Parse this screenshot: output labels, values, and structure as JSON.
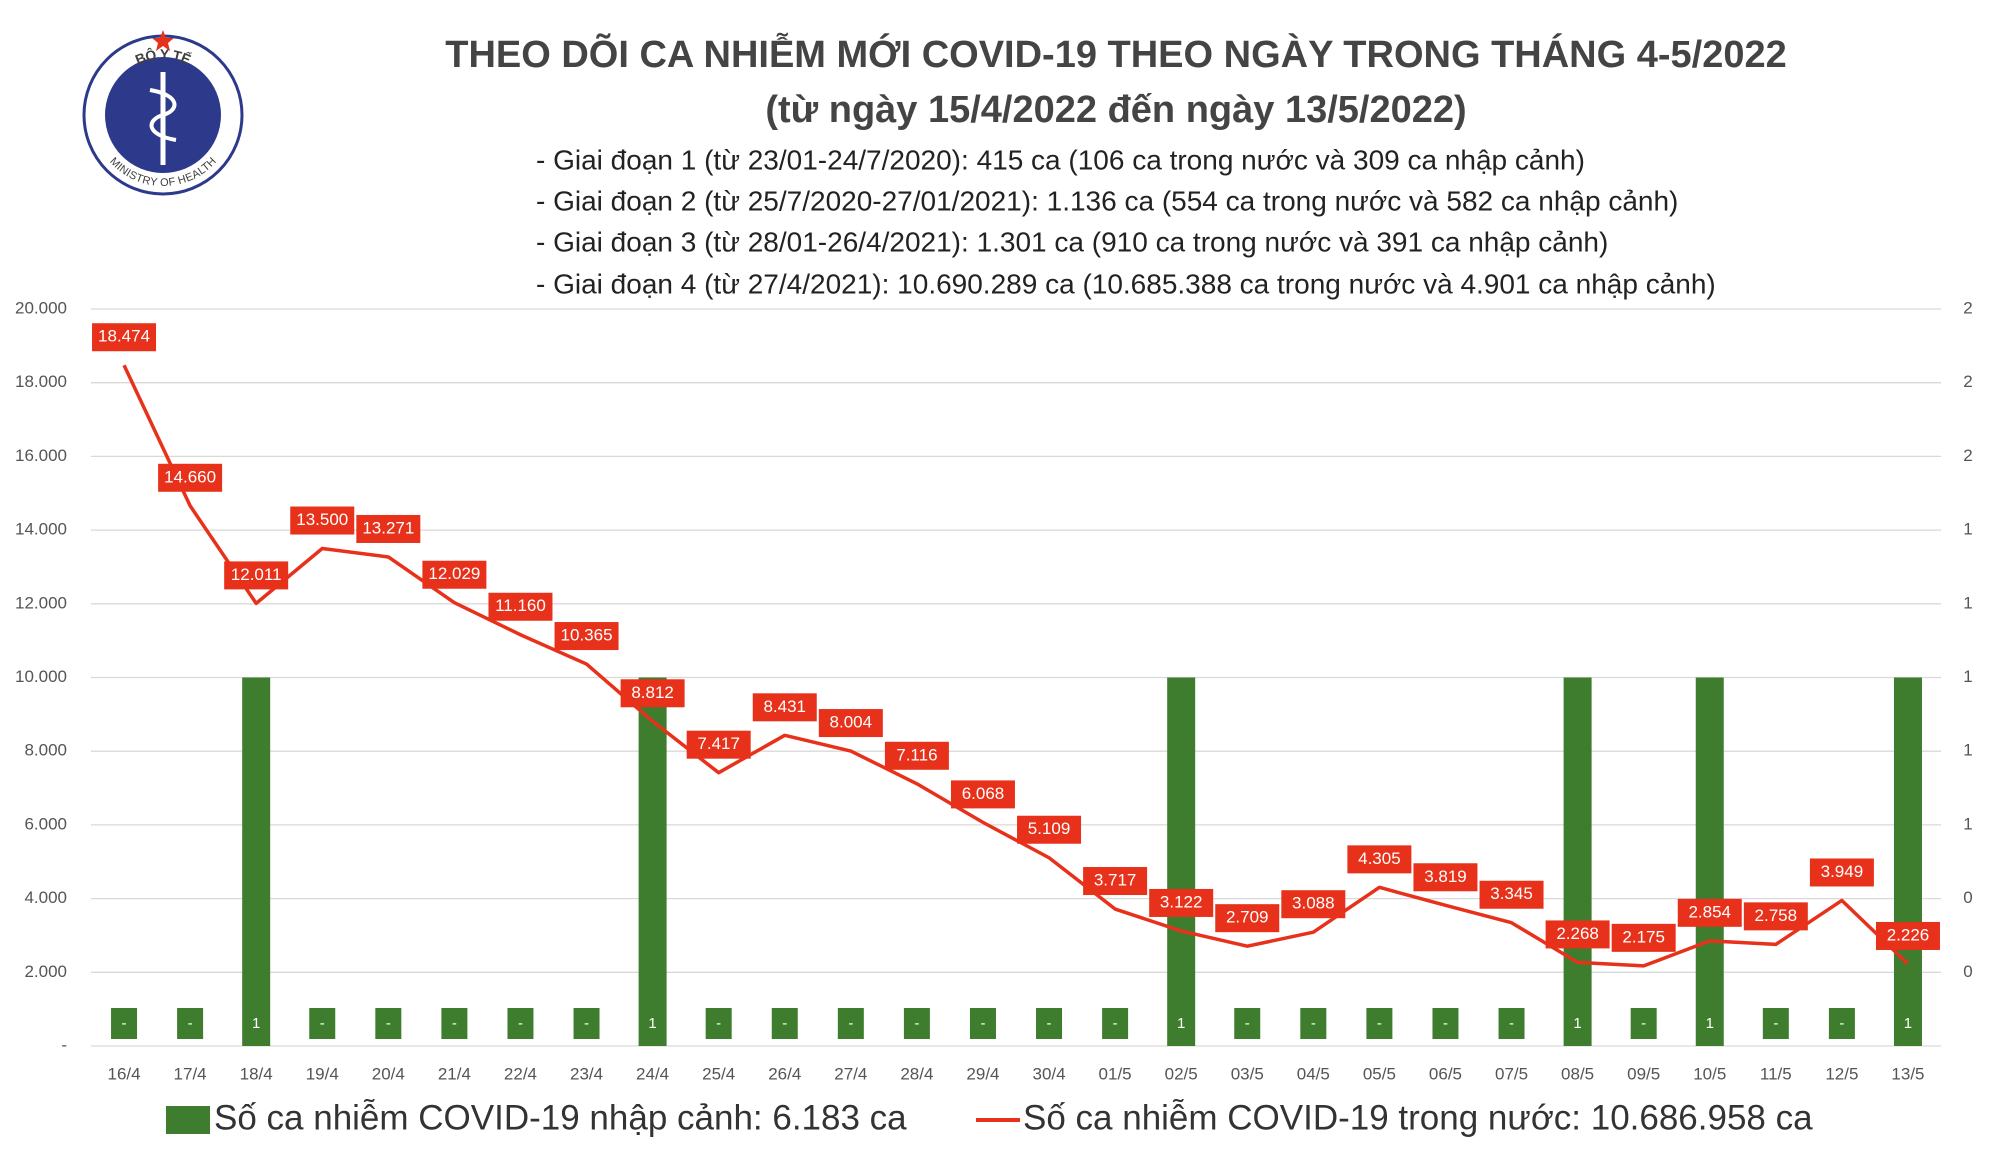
{
  "logo": {
    "top_text": "BỘ Y TẾ",
    "bottom_text": "MINISTRY OF HEALTH"
  },
  "chart_data": {
    "type": "bar",
    "title": "THEO DÕI CA NHIỄM MỚI COVID-19 THEO NGÀY TRONG THÁNG 4-5/2022",
    "subtitle": "(từ ngày 15/4/2022 đến ngày 13/5/2022)",
    "notes": [
      "- Giai đoạn 1 (từ 23/01-24/7/2020): 415 ca (106 ca trong nước và 309 ca nhập cảnh)",
      "- Giai đoạn 2 (từ 25/7/2020-27/01/2021): 1.136 ca (554 ca trong nước và 582 ca nhập cảnh)",
      "- Giai đoạn 3 (từ 28/01-26/4/2021): 1.301 ca (910 ca trong nước và 391 ca nhập cảnh)",
      "- Giai đoạn 4 (từ 27/4/2021): 10.690.289 ca (10.685.388 ca trong nước và 4.901 ca nhập cảnh)"
    ],
    "categories": [
      "16/4",
      "17/4",
      "18/4",
      "19/4",
      "20/4",
      "21/4",
      "22/4",
      "23/4",
      "24/4",
      "25/4",
      "26/4",
      "27/4",
      "28/4",
      "29/4",
      "30/4",
      "01/5",
      "02/5",
      "03/5",
      "04/5",
      "05/5",
      "06/5",
      "07/5",
      "08/5",
      "09/5",
      "10/5",
      "11/5",
      "12/5",
      "13/5"
    ],
    "series": [
      {
        "name": "Số ca nhiễm COVID-19 nhập cảnh: 6.183 ca",
        "type": "bar",
        "axis": "y2",
        "color": "#3e7d2e",
        "values": [
          0,
          0,
          1,
          0,
          0,
          0,
          0,
          0,
          1,
          0,
          0,
          0,
          0,
          0,
          0,
          0,
          1,
          0,
          0,
          0,
          0,
          0,
          1,
          0,
          1,
          0,
          0,
          1
        ],
        "value_labels": [
          "-",
          "-",
          "1",
          "-",
          "-",
          "-",
          "-",
          "-",
          "1",
          "-",
          "-",
          "-",
          "-",
          "-",
          "-",
          "-",
          "1",
          "-",
          "-",
          "-",
          "-",
          "-",
          "1",
          "-",
          "1",
          "-",
          "-",
          "1"
        ]
      },
      {
        "name": "Số ca nhiễm COVID-19 trong nước: 10.686.958 ca",
        "type": "line",
        "color": "#e8311a",
        "values": [
          18474,
          14660,
          12011,
          13500,
          13271,
          12029,
          11160,
          10365,
          8812,
          7417,
          8431,
          8004,
          7116,
          6068,
          5109,
          3717,
          3122,
          2709,
          3088,
          4305,
          3819,
          3345,
          2268,
          2175,
          2854,
          2758,
          3949,
          2226
        ],
        "value_labels": [
          "18.474",
          "14.660",
          "12.011",
          "13.500",
          "13.271",
          "12.029",
          "11.160",
          "10.365",
          "8.812",
          "7.417",
          "8.431",
          "8.004",
          "7.116",
          "6.068",
          "5.109",
          "3.717",
          "3.122",
          "2.709",
          "3.088",
          "4.305",
          "3.819",
          "3.345",
          "2.268",
          "2.175",
          "2.854",
          "2.758",
          "3.949",
          "2.226"
        ]
      }
    ],
    "ylim": [
      0,
      20000
    ],
    "yticks": [
      {
        "value": 0,
        "label": "-"
      },
      {
        "value": 2000,
        "label": "2.000"
      },
      {
        "value": 4000,
        "label": "4.000"
      },
      {
        "value": 6000,
        "label": "6.000"
      },
      {
        "value": 8000,
        "label": "8.000"
      },
      {
        "value": 10000,
        "label": "10.000"
      },
      {
        "value": 12000,
        "label": "12.000"
      },
      {
        "value": 14000,
        "label": "14.000"
      },
      {
        "value": 16000,
        "label": "16.000"
      },
      {
        "value": 18000,
        "label": "18.000"
      },
      {
        "value": 20000,
        "label": "20.000"
      }
    ],
    "y2lim": [
      0,
      2
    ],
    "y2ticks": [
      {
        "value": 0.2,
        "label": "0"
      },
      {
        "value": 0.4,
        "label": "0"
      },
      {
        "value": 0.6,
        "label": "1"
      },
      {
        "value": 0.8,
        "label": "1"
      },
      {
        "value": 1,
        "label": "1"
      },
      {
        "value": 1.2,
        "label": "1"
      },
      {
        "value": 1.4,
        "label": "1"
      },
      {
        "value": 1.6,
        "label": "2"
      },
      {
        "value": 1.8,
        "label": "2"
      },
      {
        "value": 2,
        "label": "2"
      }
    ],
    "grid": true
  }
}
